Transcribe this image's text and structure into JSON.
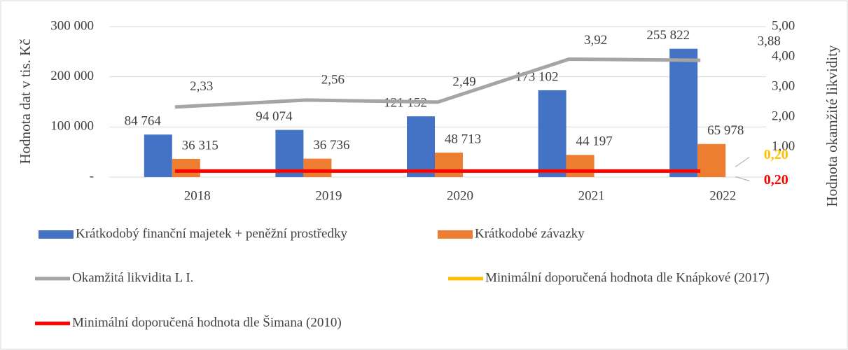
{
  "chart_data": {
    "type": "bar",
    "y_label": "Hodnota dat v tis. Kč",
    "y2_label": "Hodnota okamžité likvidity",
    "categories": [
      "2018",
      "2019",
      "2020",
      "2021",
      "2022"
    ],
    "ylim": [
      0,
      300000
    ],
    "yticks": [
      {
        "value": 0,
        "label": "-"
      },
      {
        "value": 100000,
        "label": "100 000"
      },
      {
        "value": 200000,
        "label": "200 000"
      },
      {
        "value": 300000,
        "label": "300 000"
      }
    ],
    "y2lim": [
      0,
      5
    ],
    "y2ticks": [
      {
        "value": 1,
        "label": "1,00"
      },
      {
        "value": 2,
        "label": "2,00"
      },
      {
        "value": 3,
        "label": "3,00"
      },
      {
        "value": 4,
        "label": "4,00"
      },
      {
        "value": 5,
        "label": "5,00"
      }
    ],
    "series": [
      {
        "name": "Krátkodobý finanční majetek + peněžní prostředky",
        "type": "bar",
        "color": "#4472c4",
        "values": [
          84764,
          94074,
          121152,
          173102,
          255822
        ],
        "value_labels": [
          "84 764",
          "94 074",
          "121 152",
          "173 102",
          "255 822"
        ]
      },
      {
        "name": "Krátkodobé závazky",
        "type": "bar",
        "color": "#ed7d31",
        "values": [
          36315,
          36736,
          48713,
          44197,
          65978
        ],
        "value_labels": [
          "36 315",
          "36 736",
          "48 713",
          "44 197",
          "65 978"
        ]
      },
      {
        "name": "Okamžitá likvidita L I.",
        "type": "line",
        "axis": "y2",
        "color": "#a5a5a5",
        "values": [
          2.33,
          2.56,
          2.49,
          3.92,
          3.88
        ],
        "value_labels": [
          "2,33",
          "2,56",
          "2,49",
          "3,92",
          "3,88"
        ]
      },
      {
        "name": "Minimální doporučená hodnota dle Knápkové (2017)",
        "type": "line",
        "axis": "y2",
        "color": "#ffc000",
        "values": [
          0.2,
          0.2,
          0.2,
          0.2,
          0.2
        ],
        "value_labels": [
          null,
          null,
          null,
          null,
          "0,20"
        ]
      },
      {
        "name": "Minimální doporučená hodnota dle Šimana (2010)",
        "type": "line",
        "axis": "y2",
        "color": "#ff0000",
        "values": [
          0.2,
          0.2,
          0.2,
          0.2,
          0.2
        ],
        "value_labels": [
          null,
          null,
          null,
          null,
          "0,20"
        ]
      }
    ]
  }
}
